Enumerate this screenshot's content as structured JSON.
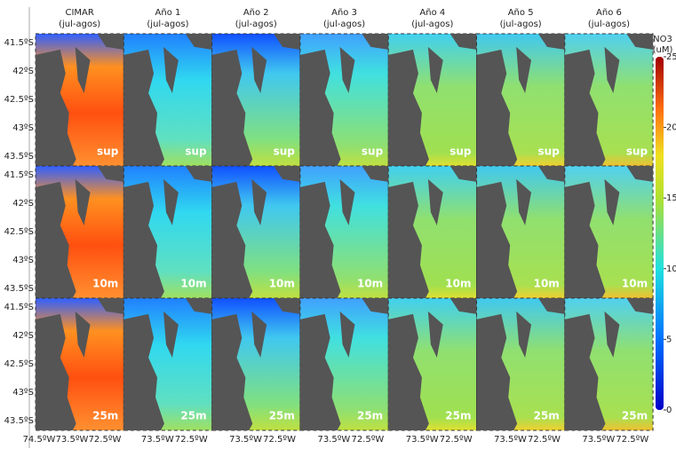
{
  "columns": [
    {
      "title": "CIMAR",
      "subtitle": "(jul-agos)"
    },
    {
      "title": "Año 1",
      "subtitle": "(jul-agos)"
    },
    {
      "title": "Año 2",
      "subtitle": "(jul-agos)"
    },
    {
      "title": "Año 3",
      "subtitle": "(jul-agos)"
    },
    {
      "title": "Año 4",
      "subtitle": "(jul-agos)"
    },
    {
      "title": "Año 5",
      "subtitle": "(jul-agos)"
    },
    {
      "title": "Año 6",
      "subtitle": "(jul-agos)"
    }
  ],
  "depths": [
    "sup",
    "10m",
    "25m"
  ],
  "lat_labels": [
    "41.5ºS",
    "42ºS",
    "42.5ºS",
    "43ºS",
    "43.5ºS"
  ],
  "lon_labels": [
    "74.5ºW",
    "73.5ºW",
    "72.5ºW"
  ],
  "colorbar": {
    "title": "NO3",
    "unit": "(uM)",
    "range": [
      0,
      25
    ],
    "ticks": [
      0,
      5,
      10,
      15,
      20,
      25
    ]
  }
}
